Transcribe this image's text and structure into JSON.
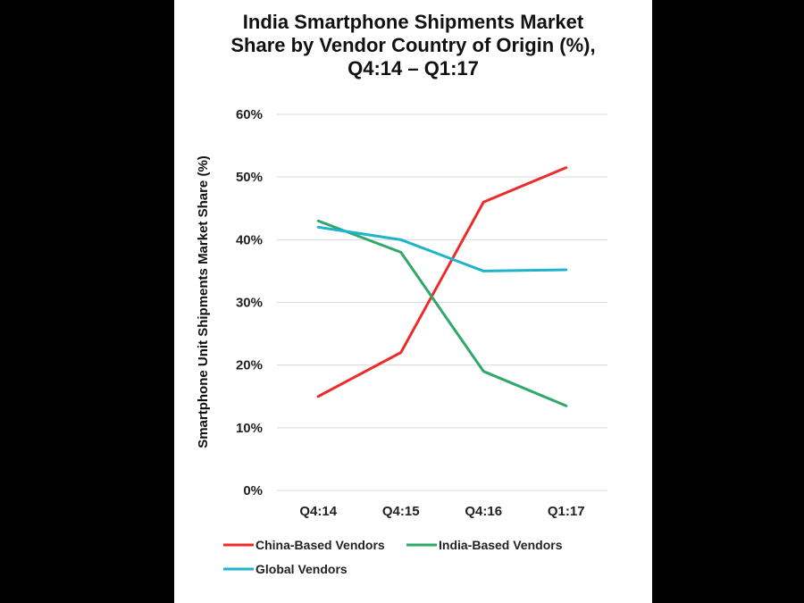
{
  "chart_data": {
    "type": "line",
    "title_lines": [
      "India Smartphone Shipments Market",
      "Share by Vendor Country of Origin (%),",
      "Q4:14 – Q1:17"
    ],
    "xlabel": "",
    "ylabel": "Smartphone Unit Shipments Market Share (%)",
    "categories": [
      "Q4:14",
      "Q4:15",
      "Q4:16",
      "Q1:17"
    ],
    "ylim": [
      0,
      60
    ],
    "yticks": [
      0,
      10,
      20,
      30,
      40,
      50,
      60
    ],
    "ytick_labels": [
      "0%",
      "10%",
      "20%",
      "30%",
      "40%",
      "50%",
      "60%"
    ],
    "grid": true,
    "legend_position": "bottom",
    "series": [
      {
        "name": "China-Based Vendors",
        "color": "#ee2b2b",
        "values": [
          15,
          22,
          46,
          51.5
        ]
      },
      {
        "name": "India-Based Vendors",
        "color": "#2fa86a",
        "values": [
          43,
          38,
          19,
          13.5
        ]
      },
      {
        "name": "Global Vendors",
        "color": "#1fb4cc",
        "values": [
          42,
          40,
          35,
          35.2
        ]
      }
    ]
  }
}
